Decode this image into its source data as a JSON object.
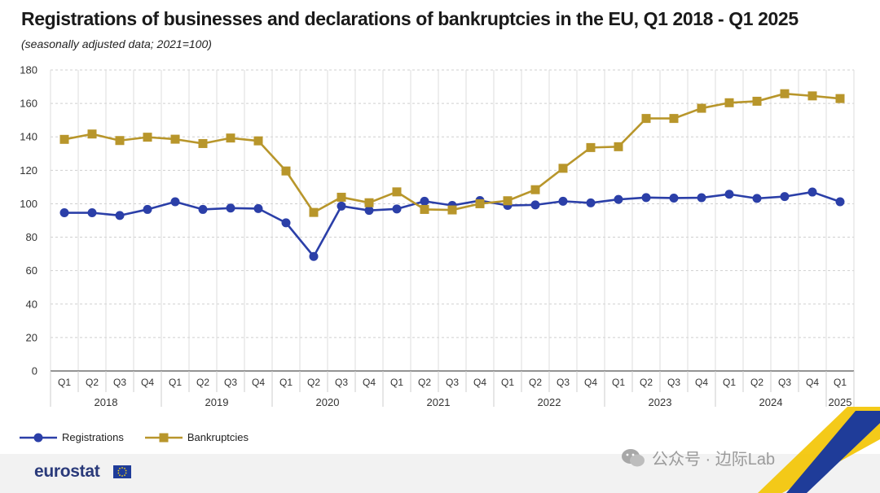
{
  "title": "Registrations of businesses and declarations of bankruptcies in the EU, Q1 2018 - Q1 2025",
  "subtitle": "(seasonally adjusted data; 2021=100)",
  "footer": {
    "logo": "eurostat"
  },
  "watermark": {
    "text": "公众号 · 边际Lab"
  },
  "colors": {
    "registrations": "#2b3fa8",
    "bankruptcies": "#b8962b",
    "grid": "#cfcfcf"
  },
  "legend": {
    "registrations": "Registrations",
    "bankruptcies": "Bankruptcies"
  },
  "chart_data": {
    "type": "line",
    "quarters": [
      "Q1",
      "Q2",
      "Q3",
      "Q4",
      "Q1",
      "Q2",
      "Q3",
      "Q4",
      "Q1",
      "Q2",
      "Q3",
      "Q4",
      "Q1",
      "Q2",
      "Q3",
      "Q4",
      "Q1",
      "Q2",
      "Q3",
      "Q4",
      "Q1",
      "Q2",
      "Q3",
      "Q4",
      "Q1",
      "Q2",
      "Q3",
      "Q4",
      "Q1"
    ],
    "years": [
      {
        "label": "2018",
        "count": 4
      },
      {
        "label": "2019",
        "count": 4
      },
      {
        "label": "2020",
        "count": 4
      },
      {
        "label": "2021",
        "count": 4
      },
      {
        "label": "2022",
        "count": 4
      },
      {
        "label": "2023",
        "count": 4
      },
      {
        "label": "2024",
        "count": 4
      },
      {
        "label": "2025",
        "count": 1
      }
    ],
    "ylim": [
      0,
      180
    ],
    "yticks": [
      0,
      20,
      40,
      60,
      80,
      100,
      120,
      140,
      160,
      180
    ],
    "grid": true,
    "legend_position": "bottom-left",
    "series": [
      {
        "name": "Registrations",
        "marker": "circle",
        "color": "#2b3fa8",
        "values": [
          94.6,
          94.6,
          93.0,
          96.6,
          101.2,
          96.6,
          97.4,
          97.1,
          88.6,
          68.5,
          98.6,
          96.0,
          96.9,
          101.5,
          99.0,
          101.9,
          99.0,
          99.3,
          101.5,
          100.5,
          102.6,
          103.7,
          103.4,
          103.6,
          105.7,
          103.2,
          104.3,
          107.0,
          101.2
        ]
      },
      {
        "name": "Bankruptcies",
        "marker": "square",
        "color": "#b8962b",
        "values": [
          138.5,
          141.7,
          137.8,
          139.8,
          138.6,
          136.0,
          139.3,
          137.6,
          119.6,
          94.8,
          103.9,
          100.6,
          107.1,
          96.6,
          96.3,
          100.0,
          101.8,
          108.4,
          121.2,
          133.6,
          134.1,
          151.0,
          151.0,
          157.1,
          160.4,
          161.3,
          165.8,
          164.5,
          162.9
        ]
      }
    ]
  }
}
